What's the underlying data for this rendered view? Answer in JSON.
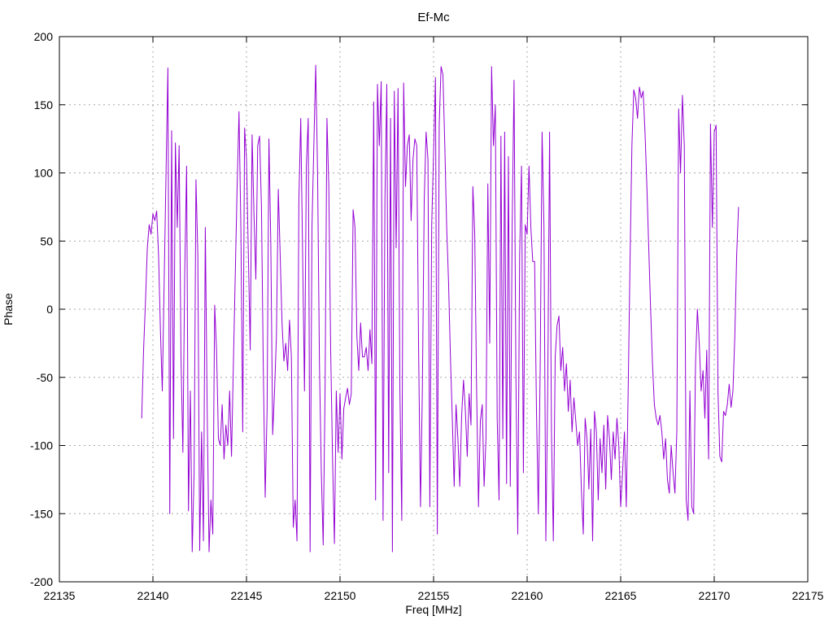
{
  "chart_data": {
    "type": "line",
    "title": "Ef-Mc",
    "xlabel": "Freq [MHz]",
    "ylabel": "Phase",
    "xlim": [
      22135,
      22175
    ],
    "ylim": [
      -200,
      200
    ],
    "x_ticks": [
      22135,
      22140,
      22145,
      22150,
      22155,
      22160,
      22165,
      22170,
      22175
    ],
    "y_ticks": [
      -200,
      -150,
      -100,
      -50,
      0,
      50,
      100,
      150,
      200
    ],
    "grid": true,
    "legend": "none",
    "line_color": "#9400d3",
    "grid_color": "#a8a8a8",
    "border_color": "#000000",
    "background_color": "#ffffff",
    "series": [
      {
        "name": "Ef-Mc",
        "f_start": 22139.4,
        "f_step": 0.1,
        "phase": [
          -80,
          -30,
          5,
          45,
          62,
          55,
          70,
          65,
          72,
          40,
          -15,
          -60,
          20,
          100,
          177,
          -150,
          131,
          -95,
          122,
          60,
          120,
          -35,
          -105,
          28,
          105,
          -148,
          -60,
          -178,
          -120,
          95,
          40,
          -177,
          -90,
          -170,
          60,
          -75,
          -178,
          -140,
          -165,
          3,
          -30,
          -95,
          -100,
          -70,
          -110,
          -85,
          -100,
          -60,
          -108,
          -40,
          25,
          90,
          145,
          60,
          -90,
          133,
          110,
          40,
          -30,
          128,
          70,
          22,
          120,
          127,
          75,
          -45,
          -138,
          -75,
          125,
          48,
          -92,
          -60,
          -20,
          88,
          40,
          -10,
          -38,
          -25,
          -45,
          -8,
          -35,
          -160,
          -140,
          -170,
          80,
          140,
          40,
          -60,
          105,
          140,
          -178,
          60,
          120,
          179,
          100,
          -40,
          -120,
          -173,
          -60,
          140,
          90,
          -30,
          -110,
          -172,
          -60,
          -105,
          -62,
          -110,
          -73,
          -65,
          -58,
          -70,
          -62,
          73,
          60,
          -20,
          -45,
          -10,
          -35,
          -35,
          -28,
          -45,
          -15,
          -40,
          152,
          -140,
          165,
          120,
          167,
          -155,
          80,
          165,
          -120,
          140,
          -178,
          160,
          45,
          162,
          -60,
          -155,
          166,
          90,
          120,
          128,
          65,
          110,
          125,
          120,
          -30,
          -145,
          -60,
          80,
          130,
          110,
          -145,
          62,
          115,
          170,
          -165,
          135,
          178,
          172,
          120,
          60,
          20,
          -35,
          -80,
          -130,
          -70,
          -95,
          -130,
          -78,
          -52,
          -75,
          -108,
          -62,
          -85,
          90,
          55,
          -60,
          -145,
          -82,
          -70,
          -130,
          -95,
          92,
          -25,
          178,
          120,
          150,
          -80,
          -140,
          127,
          -95,
          130,
          -128,
          112,
          -130,
          60,
          168,
          -50,
          -165,
          40,
          105,
          -120,
          62,
          55,
          105,
          60,
          35,
          35,
          -75,
          -150,
          -40,
          130,
          60,
          -170,
          -60,
          130,
          -90,
          -170,
          -35,
          -12,
          -5,
          -45,
          -28,
          -60,
          -40,
          -75,
          -52,
          -90,
          -65,
          -82,
          -100,
          -90,
          -132,
          -165,
          -80,
          -95,
          -132,
          -88,
          -170,
          -75,
          -90,
          -140,
          -95,
          -120,
          -85,
          -132,
          -78,
          -95,
          -125,
          -90,
          -110,
          -80,
          -100,
          -145,
          -120,
          -90,
          -145,
          -60,
          35,
          120,
          161,
          155,
          140,
          163,
          155,
          160,
          130,
          90,
          45,
          0,
          -40,
          -70,
          -80,
          -85,
          -78,
          -90,
          -110,
          -95,
          -125,
          -135,
          -100,
          -120,
          -135,
          -90,
          147,
          100,
          157,
          120,
          -140,
          -155,
          -60,
          -145,
          -150,
          -40,
          0,
          -25,
          -60,
          -45,
          -80,
          -30,
          -110,
          136,
          60,
          130,
          135,
          -60,
          -108,
          -112,
          -75,
          -78,
          -70,
          -55,
          -72,
          -60,
          -20,
          40,
          75
        ]
      }
    ]
  }
}
